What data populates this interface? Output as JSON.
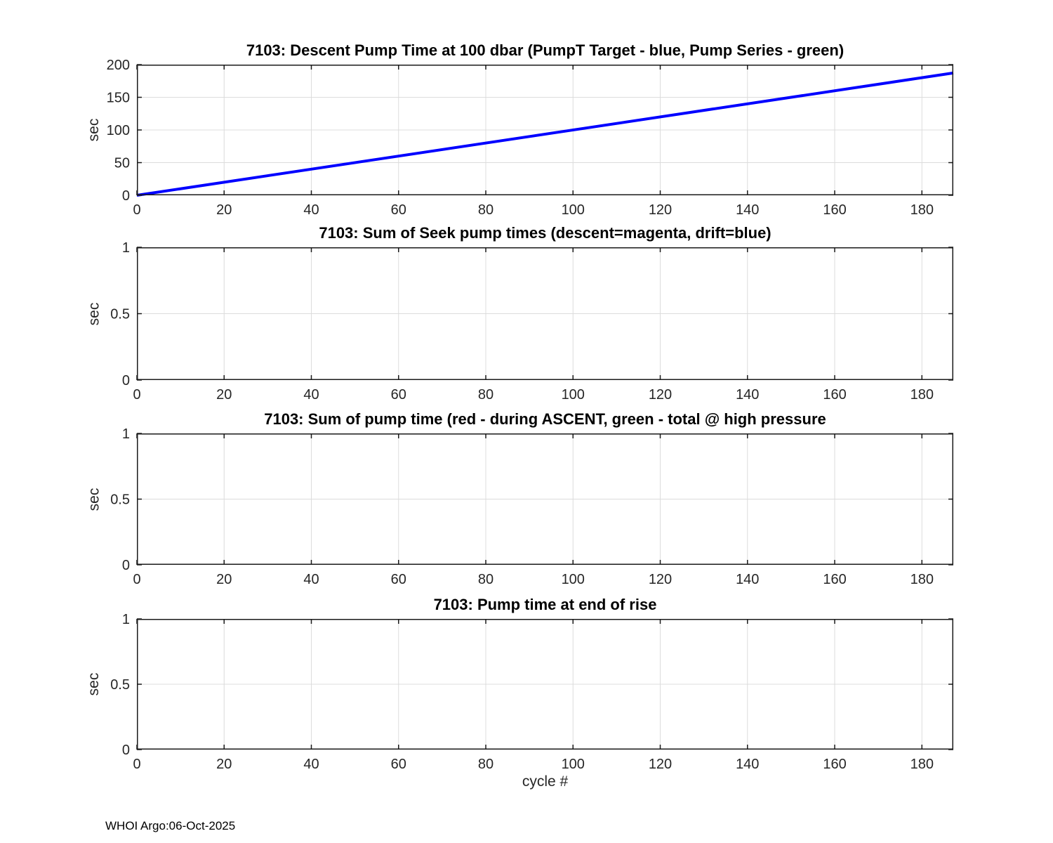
{
  "figure": {
    "background": "#ffffff",
    "axis_color": "#1a1a1a",
    "grid_color": "#dcdcdc",
    "tick_label_color": "#262626",
    "xlabel": "cycle #",
    "footer": "WHOI Argo:06-Oct-2025"
  },
  "chart_data": [
    {
      "type": "line",
      "title": "7103: Descent Pump Time at 100 dbar (PumpT Target - blue, Pump Series - green)",
      "ylabel": "sec",
      "xlabel": "",
      "xlim": [
        0,
        187.2
      ],
      "ylim": [
        0,
        200
      ],
      "xticks": [
        0,
        20,
        40,
        60,
        80,
        100,
        120,
        140,
        160,
        180
      ],
      "yticks": [
        0,
        50,
        100,
        150,
        200
      ],
      "grid": true,
      "legend": "none",
      "series": [
        {
          "name": "PumpT Target",
          "color": "#0000ff",
          "line_width": 4,
          "x": [
            0,
            187.2
          ],
          "y": [
            0,
            187.2
          ]
        }
      ]
    },
    {
      "type": "line",
      "title": "7103: Sum of Seek pump times (descent=magenta, drift=blue)",
      "ylabel": "sec",
      "xlabel": "",
      "xlim": [
        0,
        187.2
      ],
      "ylim": [
        0,
        1
      ],
      "xticks": [
        0,
        20,
        40,
        60,
        80,
        100,
        120,
        140,
        160,
        180
      ],
      "yticks": [
        0,
        0.5,
        1
      ],
      "grid": true,
      "legend": "none",
      "series": []
    },
    {
      "type": "line",
      "title": "7103: Sum of pump time (red - during ASCENT, green - total @ high pressure",
      "ylabel": "sec",
      "xlabel": "",
      "xlim": [
        0,
        187.2
      ],
      "ylim": [
        0,
        1
      ],
      "xticks": [
        0,
        20,
        40,
        60,
        80,
        100,
        120,
        140,
        160,
        180
      ],
      "yticks": [
        0,
        0.5,
        1
      ],
      "grid": true,
      "legend": "none",
      "series": []
    },
    {
      "type": "line",
      "title": "7103: Pump time at end of rise",
      "ylabel": "sec",
      "xlabel": "cycle #",
      "xlim": [
        0,
        187.2
      ],
      "ylim": [
        0,
        1
      ],
      "xticks": [
        0,
        20,
        40,
        60,
        80,
        100,
        120,
        140,
        160,
        180
      ],
      "yticks": [
        0,
        0.5,
        1
      ],
      "grid": true,
      "legend": "none",
      "series": []
    }
  ]
}
